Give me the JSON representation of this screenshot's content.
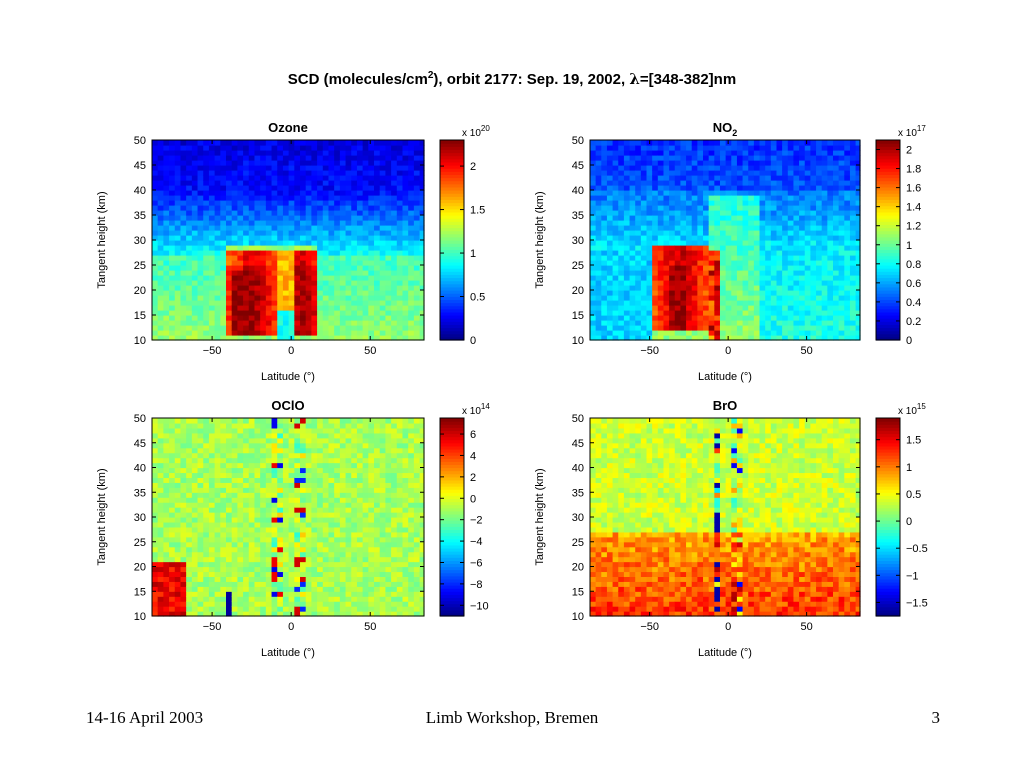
{
  "page_title": {
    "prefix": "SCD (molecules/cm",
    "sup": "2",
    "suffix": "), orbit 2177: Sep. 19, 2002, ",
    "lambda": "λ",
    "range": "=[348-382]nm"
  },
  "footer": {
    "left": "14-16 April 2003",
    "center": "Limb Workshop, Bremen",
    "right": "3"
  },
  "colors": {
    "colormap": "jet",
    "background": "#ffffff",
    "text": "#000000"
  },
  "chart_data": [
    {
      "type": "heatmap",
      "title": "Ozone",
      "xlabel": "Latitude (°)",
      "ylabel": "Tangent height (km)",
      "xlim": [
        -88,
        84
      ],
      "ylim": [
        10,
        50
      ],
      "xticks": [
        "−50",
        "0",
        "50"
      ],
      "xtick_values": [
        -50,
        0,
        50
      ],
      "yticks": [
        "10",
        "15",
        "20",
        "25",
        "30",
        "35",
        "40",
        "45",
        "50"
      ],
      "ytick_values": [
        10,
        15,
        20,
        25,
        30,
        35,
        40,
        45,
        50
      ],
      "colorbar": {
        "exponent_label": "x 10",
        "exponent": "20",
        "range": [
          0,
          2.3
        ],
        "ticks": [
          "0",
          "0.5",
          "1",
          "1.5",
          "2"
        ],
        "tick_values": [
          0,
          0.5,
          1,
          1.5,
          2
        ]
      },
      "features": "Low values (~0.2–0.5) above 40 km; broad enhancement 1.8–2.3 between 12–28 km from -42° to 18° latitude; moderate values (~1.0–1.3) at lower altitudes elsewhere."
    },
    {
      "type": "heatmap",
      "title_main": "NO",
      "title_sub": "2",
      "xlabel": "Latitude (°)",
      "ylabel": "Tangent height (km)",
      "xlim": [
        -88,
        84
      ],
      "ylim": [
        10,
        50
      ],
      "xticks": [
        "−50",
        "0",
        "50"
      ],
      "xtick_values": [
        -50,
        0,
        50
      ],
      "yticks": [
        "10",
        "15",
        "20",
        "25",
        "30",
        "35",
        "40",
        "45",
        "50"
      ],
      "ytick_values": [
        10,
        15,
        20,
        25,
        30,
        35,
        40,
        45,
        50
      ],
      "colorbar": {
        "exponent_label": "x 10",
        "exponent": "17",
        "range": [
          0,
          2.1
        ],
        "ticks": [
          "0",
          "0.2",
          "0.4",
          "0.6",
          "0.8",
          "1",
          "1.2",
          "1.4",
          "1.6",
          "1.8",
          "2"
        ],
        "tick_values": [
          0,
          0.2,
          0.4,
          0.6,
          0.8,
          1,
          1.2,
          1.4,
          1.6,
          1.8,
          2
        ]
      },
      "features": "Strong enhancement (~1.8–2.1) between 12–28 km from -48° to -12° latitude; moderate band from -10° to 20°; low values above 35 km."
    },
    {
      "type": "heatmap",
      "title": "OClO",
      "xlabel": "Latitude (°)",
      "ylabel": "Tangent height (km)",
      "xlim": [
        -88,
        84
      ],
      "ylim": [
        10,
        50
      ],
      "xticks": [
        "−50",
        "0",
        "50"
      ],
      "xtick_values": [
        -50,
        0,
        50
      ],
      "yticks": [
        "10",
        "15",
        "20",
        "25",
        "30",
        "35",
        "40",
        "45",
        "50"
      ],
      "ytick_values": [
        10,
        15,
        20,
        25,
        30,
        35,
        40,
        45,
        50
      ],
      "colorbar": {
        "exponent_label": "x 10",
        "exponent": "14",
        "range": [
          -11,
          7.5
        ],
        "ticks": [
          "6",
          "4",
          "2",
          "0",
          "−2",
          "−4",
          "−6",
          "−8",
          "−10"
        ],
        "tick_values": [
          6,
          4,
          2,
          0,
          -2,
          -4,
          -6,
          -8,
          -10
        ]
      },
      "features": "Mostly near 0; enhancement 3–7 between 10–21 km poleward of -68°; noisy columns near -10° and 5° latitude."
    },
    {
      "type": "heatmap",
      "title": "BrO",
      "xlabel": "Latitude (°)",
      "ylabel": "Tangent height (km)",
      "xlim": [
        -88,
        84
      ],
      "ylim": [
        10,
        50
      ],
      "xticks": [
        "−50",
        "0",
        "50"
      ],
      "xtick_values": [
        -50,
        0,
        50
      ],
      "yticks": [
        "10",
        "15",
        "20",
        "25",
        "30",
        "35",
        "40",
        "45",
        "50"
      ],
      "ytick_values": [
        10,
        15,
        20,
        25,
        30,
        35,
        40,
        45,
        50
      ],
      "colorbar": {
        "exponent_label": "x 10",
        "exponent": "15",
        "range": [
          -1.75,
          1.9
        ],
        "ticks": [
          "1.5",
          "1",
          "0.5",
          "0",
          "−0.5",
          "−1",
          "−1.5"
        ],
        "tick_values": [
          1.5,
          1,
          0.5,
          0,
          -0.5,
          -1,
          -1.5
        ]
      },
      "features": "Values 0.3–0.6 above 30 km; enhanced 0.8–1.5 between 10–27 km across all latitudes; noisy columns near -8° and 5° latitude."
    }
  ]
}
